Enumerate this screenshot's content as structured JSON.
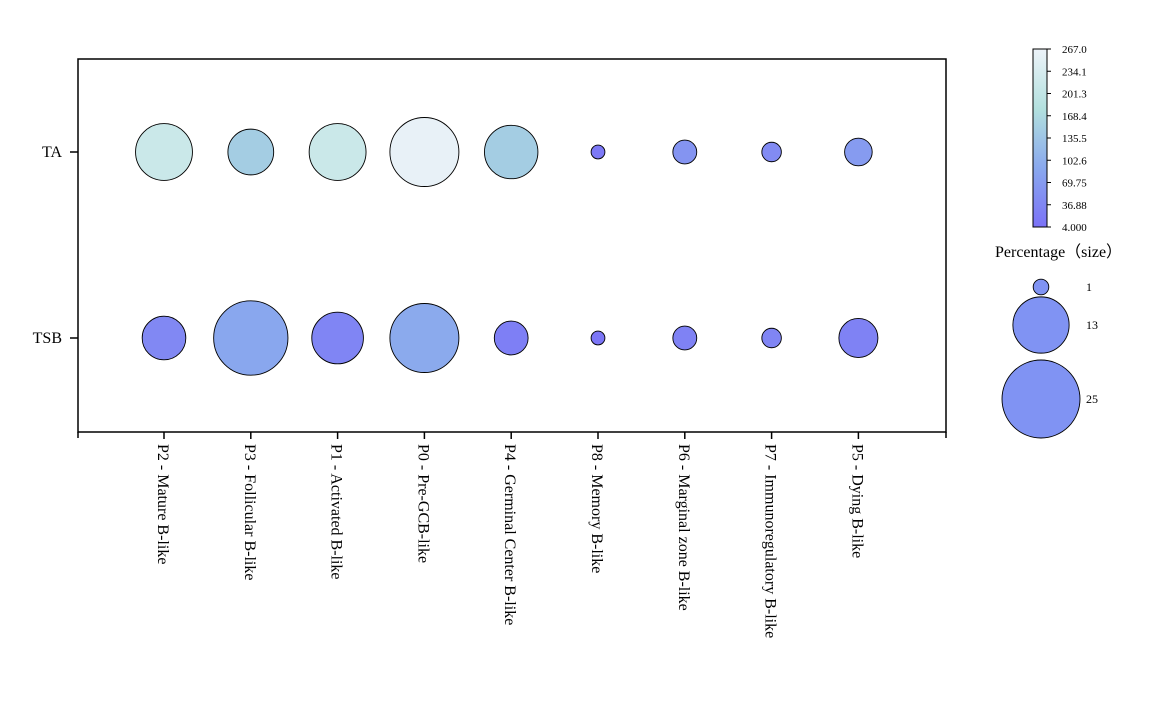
{
  "chart_data": {
    "type": "bubble",
    "rows": [
      "TA",
      "TSB"
    ],
    "categories": [
      "P2 - Mature B-like",
      "P3 - Follicular B-like",
      "P1 - Activated B-like",
      "P0 - Pre-GCB-like",
      "P4 - Germinal Center B-like",
      "P8 - Memory B-like",
      "P6 - Marginal zone B-like",
      "P7 - Immunoregulatory B-like",
      "P5 - Dying B-like"
    ],
    "series": [
      {
        "name": "TA",
        "color_values": [
          215,
          150,
          215,
          260,
          150,
          15,
          60,
          45,
          70
        ],
        "size_values": [
          17,
          11,
          17,
          25,
          15,
          1,
          3,
          2,
          4
        ]
      },
      {
        "name": "TSB",
        "color_values": [
          40,
          90,
          35,
          95,
          25,
          10,
          30,
          35,
          30
        ],
        "size_values": [
          10,
          29,
          14,
          25,
          6,
          1,
          3,
          2,
          8
        ]
      }
    ],
    "colorbar": {
      "min": 4.0,
      "max": 267.0,
      "ticks": [
        "267.0",
        "234.1",
        "201.3",
        "168.4",
        "135.5",
        "102.6",
        "69.75",
        "36.88",
        "4.000"
      ],
      "colors": [
        "#7b72f7",
        "#89a8ee",
        "#b2e0de",
        "#edf3f9"
      ]
    },
    "size_legend": {
      "title": "Percentage（size）",
      "entries": [
        {
          "label": "1",
          "value": 1
        },
        {
          "label": "13",
          "value": 13
        },
        {
          "label": "25",
          "value": 25
        }
      ],
      "color": "#8093f3"
    }
  }
}
